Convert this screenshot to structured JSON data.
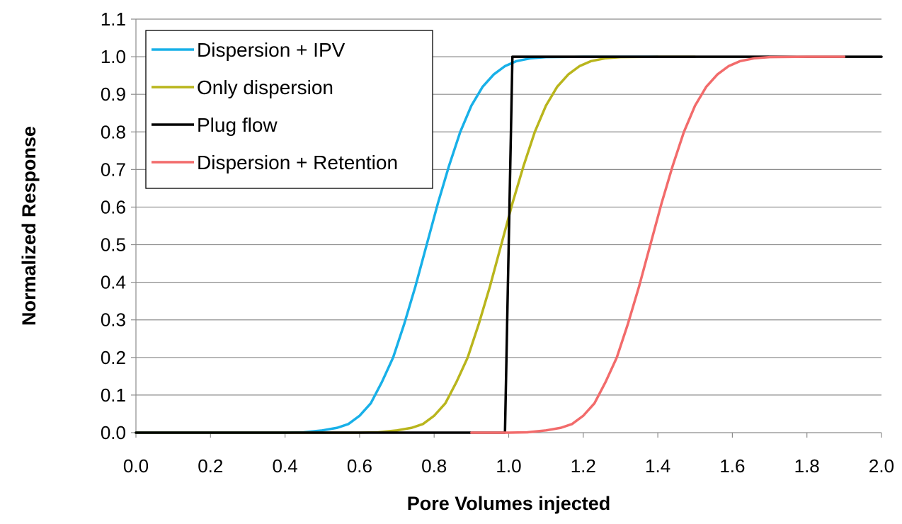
{
  "chart_data": {
    "type": "line",
    "title": "",
    "xlabel": "Pore Volumes injected",
    "ylabel": "Normalized Response",
    "xlim": [
      0.0,
      2.0
    ],
    "ylim": [
      0.0,
      1.1
    ],
    "x_ticks": [
      0.0,
      0.2,
      0.4,
      0.6,
      0.8,
      1.0,
      1.2,
      1.4,
      1.6,
      1.8,
      2.0
    ],
    "x_tick_labels": [
      "0.0",
      "0.2",
      "0.4",
      "0.6",
      "0.8",
      "1.0",
      "1.2",
      "1.4",
      "1.6",
      "1.8",
      "2.0"
    ],
    "y_ticks": [
      0.0,
      0.1,
      0.2,
      0.3,
      0.4,
      0.5,
      0.6,
      0.7,
      0.8,
      0.9,
      1.0,
      1.1
    ],
    "y_tick_labels": [
      "0.0",
      "0.1",
      "0.2",
      "0.3",
      "0.4",
      "0.5",
      "0.6",
      "0.7",
      "0.8",
      "0.9",
      "1.0",
      "1.1"
    ],
    "grid": "horizontal",
    "legend_position": "top-left",
    "series": [
      {
        "name": "Dispersion + IPV",
        "color": "#18b0e8",
        "points": [
          [
            0.0,
            0.0
          ],
          [
            0.4,
            0.0
          ],
          [
            0.45,
            0.001
          ],
          [
            0.5,
            0.006
          ],
          [
            0.54,
            0.013
          ],
          [
            0.57,
            0.023
          ],
          [
            0.6,
            0.045
          ],
          [
            0.63,
            0.078
          ],
          [
            0.66,
            0.135
          ],
          [
            0.69,
            0.2
          ],
          [
            0.72,
            0.29
          ],
          [
            0.75,
            0.39
          ],
          [
            0.78,
            0.5
          ],
          [
            0.81,
            0.61
          ],
          [
            0.84,
            0.71
          ],
          [
            0.87,
            0.8
          ],
          [
            0.9,
            0.87
          ],
          [
            0.93,
            0.92
          ],
          [
            0.96,
            0.953
          ],
          [
            0.99,
            0.975
          ],
          [
            1.02,
            0.988
          ],
          [
            1.06,
            0.996
          ],
          [
            1.1,
            0.999
          ],
          [
            1.2,
            1.0
          ],
          [
            1.4,
            1.0
          ]
        ]
      },
      {
        "name": "Only dispersion",
        "color": "#b9b51c",
        "points": [
          [
            0.0,
            0.0
          ],
          [
            0.6,
            0.0
          ],
          [
            0.65,
            0.001
          ],
          [
            0.7,
            0.006
          ],
          [
            0.74,
            0.013
          ],
          [
            0.77,
            0.023
          ],
          [
            0.8,
            0.045
          ],
          [
            0.83,
            0.078
          ],
          [
            0.86,
            0.135
          ],
          [
            0.89,
            0.2
          ],
          [
            0.92,
            0.29
          ],
          [
            0.95,
            0.39
          ],
          [
            0.98,
            0.5
          ],
          [
            1.01,
            0.61
          ],
          [
            1.04,
            0.71
          ],
          [
            1.07,
            0.8
          ],
          [
            1.1,
            0.87
          ],
          [
            1.13,
            0.92
          ],
          [
            1.16,
            0.953
          ],
          [
            1.19,
            0.975
          ],
          [
            1.22,
            0.988
          ],
          [
            1.26,
            0.996
          ],
          [
            1.3,
            0.999
          ],
          [
            1.4,
            1.0
          ],
          [
            1.5,
            1.0
          ]
        ]
      },
      {
        "name": "Plug flow",
        "color": "#000000",
        "points": [
          [
            0.0,
            0.0
          ],
          [
            0.99,
            0.0
          ],
          [
            1.01,
            1.0
          ],
          [
            2.0,
            1.0
          ]
        ]
      },
      {
        "name": "Dispersion + Retention",
        "color": "#f26b6b",
        "points": [
          [
            0.9,
            0.0
          ],
          [
            1.0,
            0.0
          ],
          [
            1.05,
            0.001
          ],
          [
            1.1,
            0.006
          ],
          [
            1.14,
            0.013
          ],
          [
            1.17,
            0.023
          ],
          [
            1.2,
            0.045
          ],
          [
            1.23,
            0.078
          ],
          [
            1.26,
            0.135
          ],
          [
            1.29,
            0.2
          ],
          [
            1.32,
            0.29
          ],
          [
            1.35,
            0.39
          ],
          [
            1.38,
            0.5
          ],
          [
            1.41,
            0.61
          ],
          [
            1.44,
            0.71
          ],
          [
            1.47,
            0.8
          ],
          [
            1.5,
            0.87
          ],
          [
            1.53,
            0.92
          ],
          [
            1.56,
            0.953
          ],
          [
            1.59,
            0.975
          ],
          [
            1.62,
            0.988
          ],
          [
            1.66,
            0.996
          ],
          [
            1.7,
            0.999
          ],
          [
            1.8,
            1.0
          ],
          [
            1.9,
            1.0
          ]
        ]
      }
    ]
  }
}
